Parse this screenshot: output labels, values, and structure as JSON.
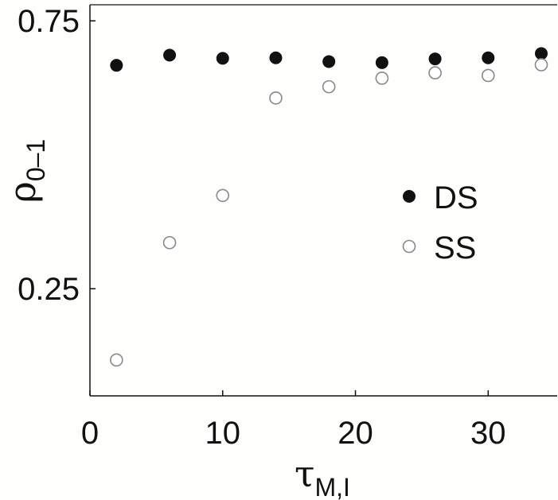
{
  "chart_data": {
    "type": "scatter",
    "xlabel": {
      "main": "τ",
      "sub": "M,I"
    },
    "ylabel": {
      "main": "ρ",
      "sub": "0–1"
    },
    "xlim": [
      0,
      35.2
    ],
    "ylim": [
      0.05,
      0.78
    ],
    "xticks": [
      0,
      10,
      20,
      30
    ],
    "xtick_labels": [
      "0",
      "10",
      "20",
      "30"
    ],
    "yticks": [
      0.25,
      0.75
    ],
    "ytick_labels": [
      "0.25",
      "0.75"
    ],
    "grid": false,
    "legend_placement": "center-right",
    "series": [
      {
        "name": "DS",
        "marker": "filled-circle",
        "color": "#111111",
        "x": [
          2,
          6,
          10,
          14,
          18,
          22,
          26,
          30,
          34
        ],
        "y": [
          0.667,
          0.686,
          0.68,
          0.681,
          0.674,
          0.672,
          0.679,
          0.681,
          0.689
        ]
      },
      {
        "name": "SS",
        "marker": "open-circle",
        "color": "#888888",
        "x": [
          2,
          6,
          10,
          14,
          18,
          22,
          26,
          30,
          34
        ],
        "y": [
          0.117,
          0.336,
          0.424,
          0.606,
          0.627,
          0.643,
          0.653,
          0.648,
          0.668
        ]
      }
    ]
  }
}
